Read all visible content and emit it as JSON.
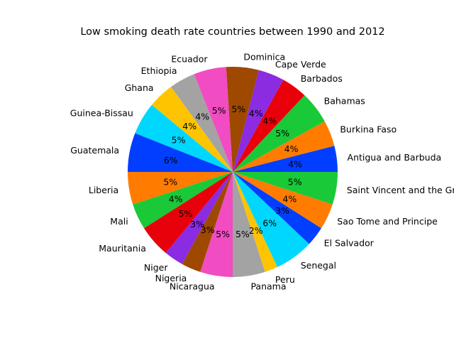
{
  "chart_data": {
    "type": "pie",
    "title": "Low smoking death rate countries between 1990 and 2012",
    "start_angle_deg": 0,
    "direction": "counterclockwise",
    "autopct_format": "%.0f%%",
    "colors": [
      "#023eff",
      "#ff7c00",
      "#1ac938",
      "#e8000b",
      "#8b2be2",
      "#9f4800",
      "#f14cc1",
      "#a3a3a3",
      "#ffc400",
      "#00d7ff"
    ],
    "categories": [
      "Antigua and Barbuda",
      "Burkina Faso",
      "Bahamas",
      "Barbados",
      "Cape Verde",
      "Dominica",
      "Ecuador",
      "Ethiopia",
      "Ghana",
      "Guinea-Bissau",
      "Guatemala",
      "Liberia",
      "Mali",
      "Mauritania",
      "Niger",
      "Nigeria",
      "Nicaragua",
      "Panama",
      "Peru",
      "Senegal",
      "El Salvador",
      "Sao Tome and Principe",
      "Saint Vincent and the Grenadines"
    ],
    "values": [
      4.0,
      4.0,
      5.0,
      4.0,
      4.0,
      5.0,
      5.0,
      4.0,
      4.0,
      5.0,
      6.0,
      5.0,
      4.0,
      5.0,
      3.0,
      3.0,
      5.0,
      5.0,
      2.0,
      6.0,
      3.0,
      4.0,
      5.0
    ]
  }
}
